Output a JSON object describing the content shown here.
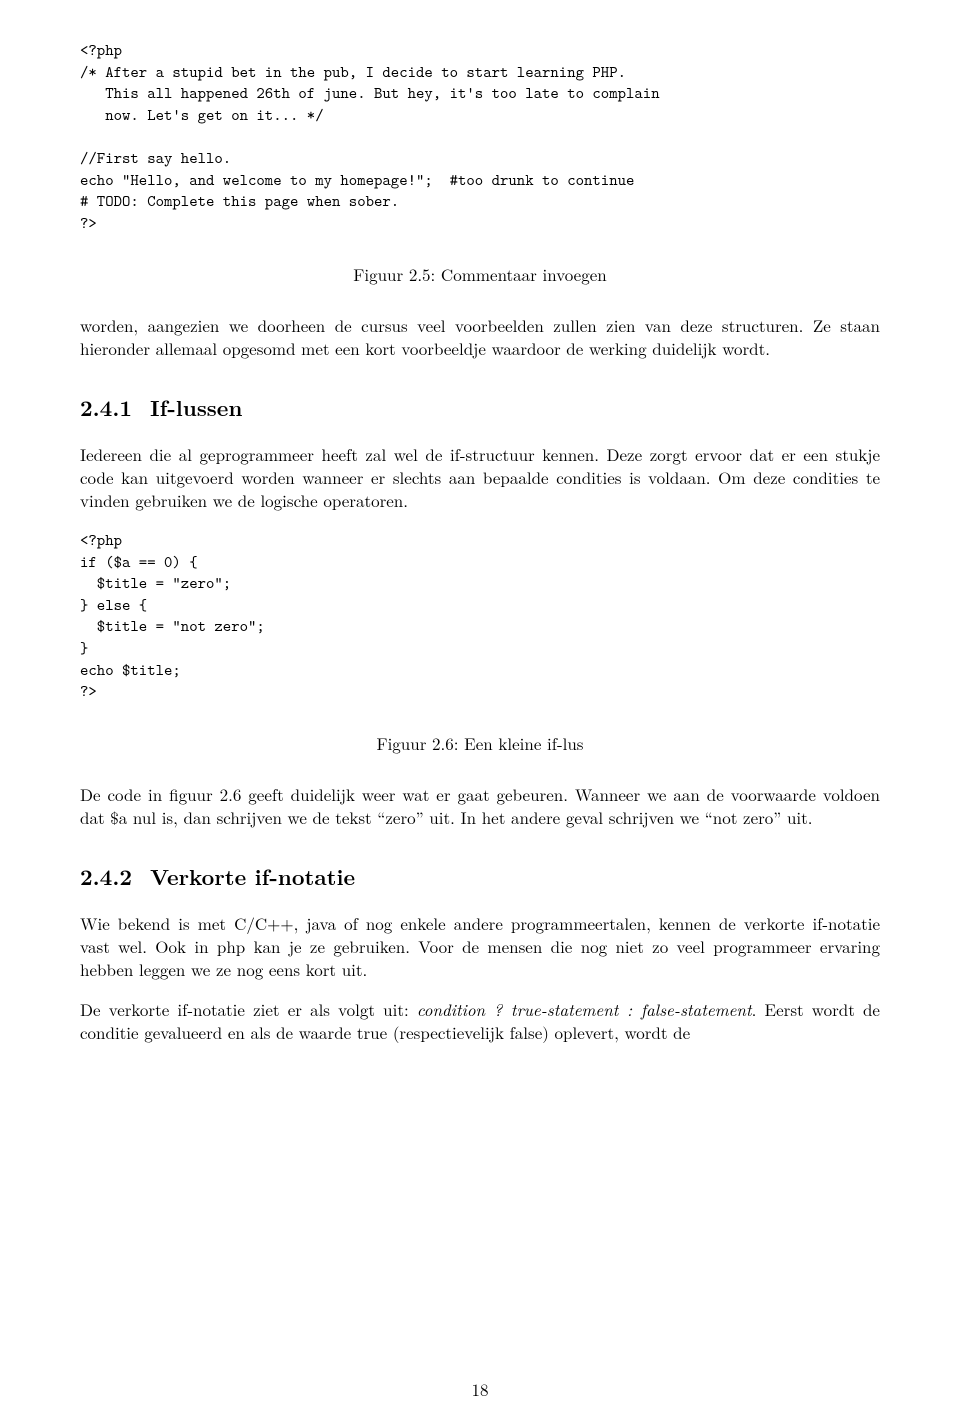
{
  "code1": {
    "l1": "<?php",
    "l2": "/* After a stupid bet in the pub, I decide to start learning PHP.",
    "l3": "   This all happened 26th of june. But hey, it's too late to complain",
    "l4": "   now. Let's get on it... */",
    "l5": "",
    "l6": "//First say hello.",
    "l7": "echo \"Hello, and welcome to my homepage!\";  #too drunk to continue",
    "l8": "# TODO: Complete this page when sober.",
    "l9": "?>"
  },
  "caption1": "Figuur 2.5: Commentaar invoegen",
  "para1": "worden, aangezien we doorheen de cursus veel voorbeelden zullen zien van deze structuren. Ze staan hieronder allemaal opgesomd met een kort voorbeeldje waardoor de werking duidelijk wordt.",
  "h1_num": "2.4.1",
  "h1_text": "If-lussen",
  "para2": "Iedereen die al geprogrammeer heeft zal wel de if-structuur kennen. Deze zorgt ervoor dat er een stukje code kan uitgevoerd worden wanneer er slechts aan bepaalde condities is voldaan. Om deze condities te vinden gebruiken we de logische operatoren.",
  "code2": {
    "l1": "<?php",
    "l2": "if ($a == 0) {",
    "l3": "  $title = \"zero\";",
    "l4": "} else {",
    "l5": "  $title = \"not zero\";",
    "l6": "}",
    "l7": "echo $title;",
    "l8": "?>"
  },
  "caption2": "Figuur 2.6: Een kleine if-lus",
  "para3": "De code in figuur 2.6 geeft duidelijk weer wat er gaat gebeuren. Wanneer we aan de voorwaarde voldoen dat $a nul is, dan schrijven we de tekst “zero” uit. In het andere geval schrijven we “not zero” uit.",
  "h2_num": "2.4.2",
  "h2_text": "Verkorte if-notatie",
  "para4": "Wie bekend is met C/C++, java of nog enkele andere programmeertalen, kennen de verkorte if-notatie vast wel. Ook in php kan je ze gebruiken. Voor de mensen die nog niet zo veel programmeer ervaring hebben leggen we ze nog eens kort uit.",
  "para5_a": "De verkorte if-notatie ziet er als volgt uit: ",
  "para5_b": "condition ? true-statement : false-statement",
  "para5_c": ". Eerst wordt de conditie gevalueerd en als de waarde true (respectievelijk false) oplevert, wordt de",
  "pagenum": "18"
}
